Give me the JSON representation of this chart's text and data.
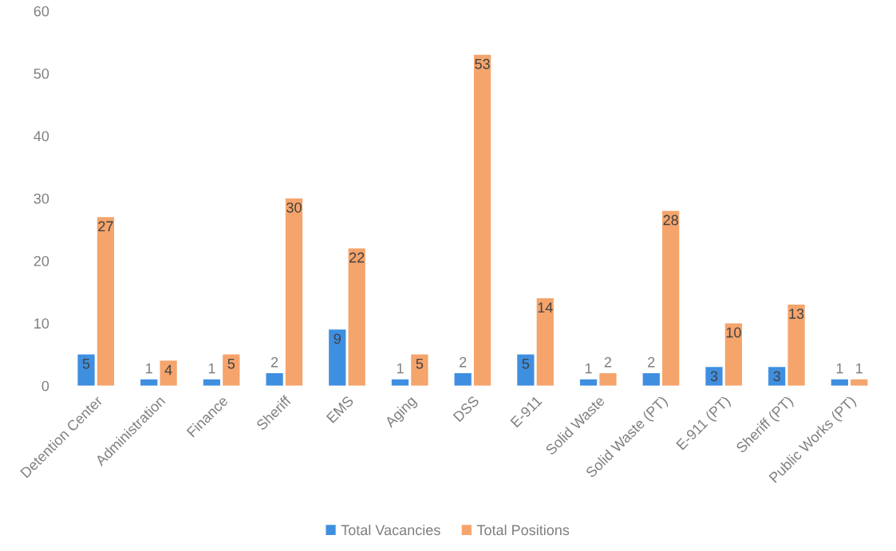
{
  "chart_data": {
    "type": "bar",
    "categories": [
      "Detention Center",
      "Administration",
      "Finance",
      "Sheriff",
      "EMS",
      "Aging",
      "DSS",
      "E-911",
      "Solid Waste",
      "Solid Waste (PT)",
      "E-911 (PT)",
      "Sheriff (PT)",
      "Public Works (PT)"
    ],
    "series": [
      {
        "name": "Total Vacancies",
        "color": "#3f8fe0",
        "values": [
          5,
          1,
          1,
          2,
          9,
          1,
          2,
          5,
          1,
          2,
          3,
          3,
          1
        ]
      },
      {
        "name": "Total Positions",
        "color": "#f5a46c",
        "values": [
          27,
          4,
          5,
          30,
          22,
          5,
          53,
          14,
          2,
          28,
          10,
          13,
          1
        ]
      }
    ],
    "ylim": [
      0,
      60
    ],
    "yticks": [
      0,
      10,
      20,
      30,
      40,
      50,
      60
    ],
    "data_labels": true,
    "grid": false,
    "legend": "bottom"
  }
}
